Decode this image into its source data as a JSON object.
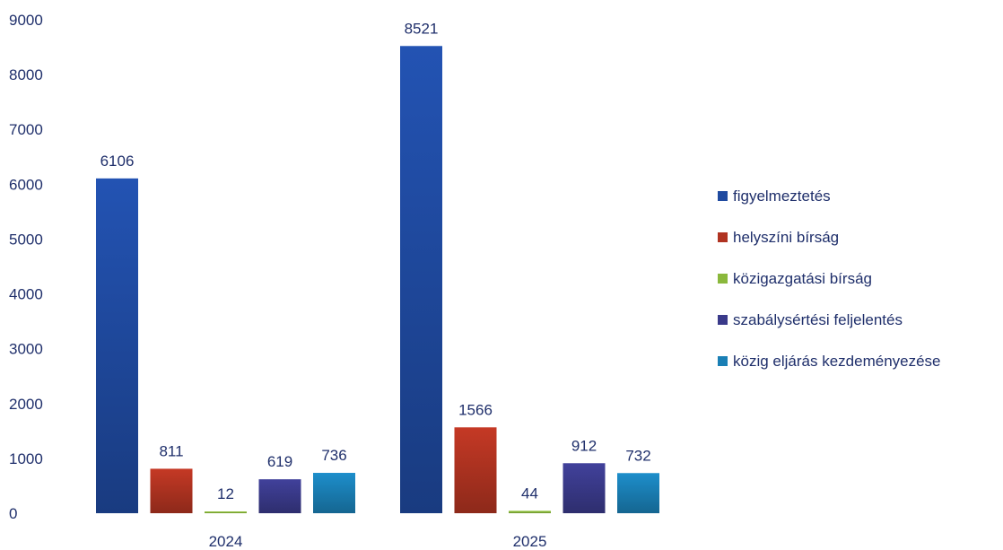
{
  "chart_data": {
    "type": "bar",
    "title": "",
    "xlabel": "",
    "ylabel": "",
    "categories": [
      "2024",
      "2025"
    ],
    "ylim": [
      0,
      9000
    ],
    "yticks": [
      0,
      1000,
      2000,
      3000,
      4000,
      5000,
      6000,
      7000,
      8000,
      9000
    ],
    "grid": false,
    "legend_position": "right",
    "series": [
      {
        "name": "figyelmeztetés",
        "values": [
          6106,
          8521
        ],
        "color": "#1f4aa0"
      },
      {
        "name": "helyszíni bírság",
        "values": [
          811,
          1566
        ],
        "color": "#b03321"
      },
      {
        "name": "közigazgatási bírság",
        "values": [
          12,
          44
        ],
        "color": "#8ab83c"
      },
      {
        "name": "szabálysértési feljelentés",
        "values": [
          619,
          912
        ],
        "color": "#3a3a8a"
      },
      {
        "name": "közig eljárás kezdeményezése",
        "values": [
          736,
          732
        ],
        "color": "#1a7fb5"
      }
    ]
  }
}
